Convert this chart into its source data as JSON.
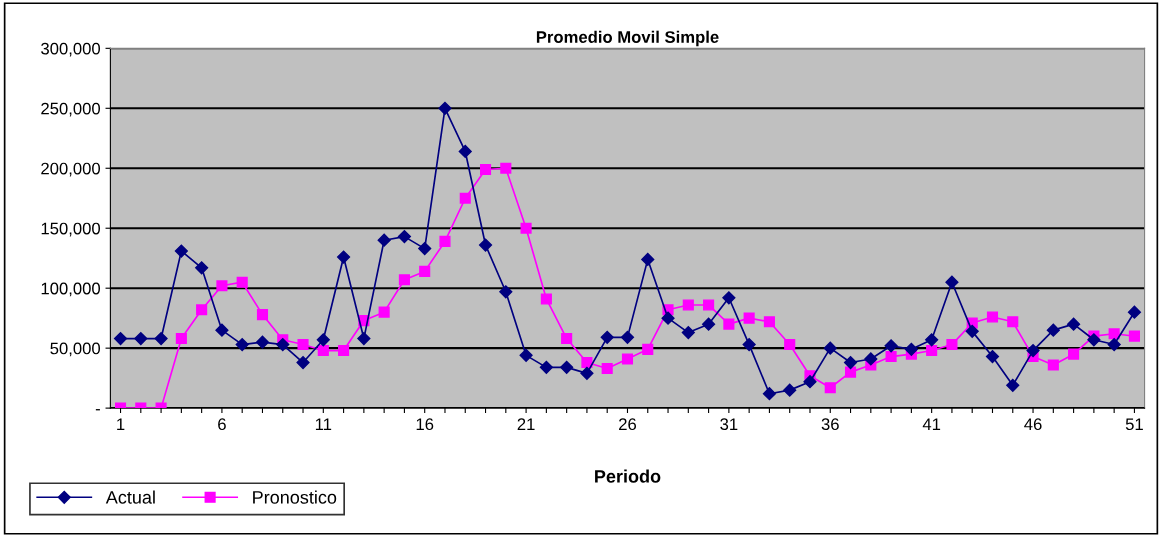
{
  "chart_data": {
    "type": "line",
    "title": "Promedio Movil Simple",
    "xlabel": "Periodo",
    "x": [
      1,
      2,
      3,
      4,
      5,
      6,
      7,
      8,
      9,
      10,
      11,
      12,
      13,
      14,
      15,
      16,
      17,
      18,
      19,
      20,
      21,
      22,
      23,
      24,
      25,
      26,
      27,
      28,
      29,
      30,
      31,
      32,
      33,
      34,
      35,
      36,
      37,
      38,
      39,
      40,
      41,
      42,
      43,
      44,
      45,
      46,
      47,
      48,
      49,
      50,
      51
    ],
    "series": [
      {
        "name": "Actual",
        "color": "#000080",
        "marker": "diamond",
        "values": [
          58000,
          58000,
          58000,
          131000,
          117000,
          65000,
          53000,
          55000,
          53000,
          38000,
          57000,
          126000,
          58000,
          140000,
          143000,
          133000,
          250000,
          214000,
          136000,
          97000,
          44000,
          34000,
          34000,
          29000,
          59000,
          59000,
          124000,
          75000,
          63000,
          70000,
          92000,
          53000,
          12000,
          15000,
          22000,
          50000,
          38000,
          41000,
          52000,
          49000,
          57000,
          105000,
          64000,
          43000,
          19000,
          48000,
          65000,
          70000,
          57000,
          53000,
          80000
        ]
      },
      {
        "name": "Pronostico",
        "color": "#ff00ff",
        "marker": "square",
        "values": [
          0,
          0,
          0,
          58000,
          82000,
          102000,
          105000,
          78000,
          57000,
          53000,
          48000,
          48000,
          73000,
          80000,
          107000,
          114000,
          139000,
          175000,
          199000,
          200000,
          150000,
          91000,
          58000,
          38000,
          33000,
          41000,
          49000,
          82000,
          86000,
          86000,
          70000,
          75000,
          72000,
          53000,
          27000,
          17000,
          30000,
          36000,
          43000,
          45000,
          48000,
          53000,
          71000,
          76000,
          72000,
          43000,
          36000,
          45000,
          60000,
          62000,
          60000
        ]
      }
    ],
    "xlim": [
      0.5,
      51.5
    ],
    "xticks": [
      1,
      {
        "value": 2,
        "label": null
      },
      {
        "value": 3,
        "label": null
      },
      {
        "value": 4,
        "label": null
      },
      {
        "value": 5,
        "label": null
      },
      6,
      {
        "value": 7,
        "label": null
      },
      {
        "value": 8,
        "label": null
      },
      {
        "value": 9,
        "label": null
      },
      {
        "value": 10,
        "label": null
      },
      11,
      {
        "value": 12,
        "label": null
      },
      {
        "value": 13,
        "label": null
      },
      {
        "value": 14,
        "label": null
      },
      {
        "value": 15,
        "label": null
      },
      16,
      {
        "value": 17,
        "label": null
      },
      {
        "value": 18,
        "label": null
      },
      {
        "value": 19,
        "label": null
      },
      {
        "value": 20,
        "label": null
      },
      21,
      {
        "value": 22,
        "label": null
      },
      {
        "value": 23,
        "label": null
      },
      {
        "value": 24,
        "label": null
      },
      {
        "value": 25,
        "label": null
      },
      26,
      {
        "value": 27,
        "label": null
      },
      {
        "value": 28,
        "label": null
      },
      {
        "value": 29,
        "label": null
      },
      {
        "value": 30,
        "label": null
      },
      31,
      {
        "value": 32,
        "label": null
      },
      {
        "value": 33,
        "label": null
      },
      {
        "value": 34,
        "label": null
      },
      {
        "value": 35,
        "label": null
      },
      36,
      {
        "value": 37,
        "label": null
      },
      {
        "value": 38,
        "label": null
      },
      {
        "value": 39,
        "label": null
      },
      {
        "value": 40,
        "label": null
      },
      41,
      {
        "value": 42,
        "label": null
      },
      {
        "value": 43,
        "label": null
      },
      {
        "value": 44,
        "label": null
      },
      {
        "value": 45,
        "label": null
      },
      46,
      {
        "value": 47,
        "label": null
      },
      {
        "value": 48,
        "label": null
      },
      {
        "value": 49,
        "label": null
      },
      {
        "value": 50,
        "label": null
      },
      51
    ],
    "ylim": [
      0,
      300000
    ],
    "yticks": [
      {
        "value": 0,
        "label": "-"
      },
      {
        "value": 50000,
        "label": "50,000"
      },
      {
        "value": 100000,
        "label": "100,000"
      },
      {
        "value": 150000,
        "label": "150,000"
      },
      {
        "value": 200000,
        "label": "200,000"
      },
      {
        "value": 250000,
        "label": "250,000"
      },
      {
        "value": 300000,
        "label": "300,000"
      }
    ],
    "grid": "y",
    "legend": "bottom left",
    "line_style": "solid"
  }
}
